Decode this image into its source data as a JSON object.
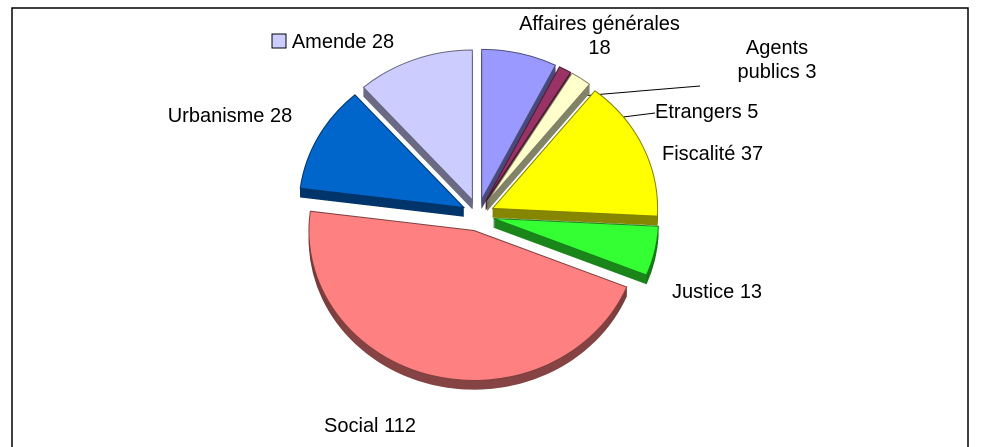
{
  "chart_data": {
    "type": "pie",
    "categories": [
      "Affaires générales",
      "Agents publics",
      "Etrangers",
      "Fiscalité",
      "Justice",
      "Social",
      "Urbanisme",
      "Amende"
    ],
    "values": [
      18,
      3,
      5,
      37,
      13,
      112,
      28,
      28
    ],
    "colors": [
      "#9999ff",
      "#993366",
      "#ffffcc",
      "#ffff00",
      "#33ff33",
      "#ff8080",
      "#0066cc",
      "#ccccff"
    ],
    "exploded": true,
    "three_d": true
  }
}
